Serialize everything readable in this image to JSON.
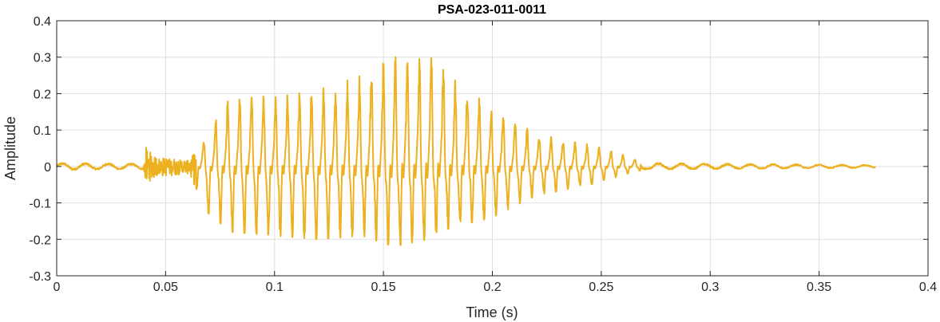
{
  "chart_data": {
    "type": "line",
    "title": "PSA-023-011-0011",
    "xlabel": "Time (s)",
    "ylabel": "Amplitude",
    "xlim": [
      0,
      0.4
    ],
    "ylim": [
      -0.3,
      0.4
    ],
    "xticks": [
      0,
      0.05,
      0.1,
      0.15,
      0.2,
      0.25,
      0.3,
      0.35,
      0.4
    ],
    "xtick_labels": [
      "0",
      "0.05",
      "0.1",
      "0.15",
      "0.2",
      "0.25",
      "0.3",
      "0.35",
      "0.4"
    ],
    "yticks": [
      -0.3,
      -0.2,
      -0.1,
      0,
      0.1,
      0.2,
      0.3,
      0.4
    ],
    "ytick_labels": [
      "-0.3",
      "-0.2",
      "-0.1",
      "0",
      "0.1",
      "0.2",
      "0.3",
      "0.4"
    ],
    "grid": true,
    "line_color": "#EDB120",
    "series": [
      {
        "x_start": 0,
        "x_end": 0.376,
        "envelope": [
          {
            "t": 0.0,
            "pos": 0.01,
            "neg": -0.01
          },
          {
            "t": 0.04,
            "pos": 0.008,
            "neg": -0.008
          },
          {
            "t": 0.041,
            "pos": 0.052,
            "neg": -0.058
          },
          {
            "t": 0.045,
            "pos": 0.025,
            "neg": -0.03
          },
          {
            "t": 0.06,
            "pos": 0.015,
            "neg": -0.02
          },
          {
            "t": 0.064,
            "pos": 0.04,
            "neg": -0.06
          },
          {
            "t": 0.068,
            "pos": 0.08,
            "neg": -0.12
          },
          {
            "t": 0.08,
            "pos": 0.2,
            "neg": -0.18
          },
          {
            "t": 0.1,
            "pos": 0.19,
            "neg": -0.19
          },
          {
            "t": 0.12,
            "pos": 0.21,
            "neg": -0.2
          },
          {
            "t": 0.14,
            "pos": 0.25,
            "neg": -0.19
          },
          {
            "t": 0.155,
            "pos": 0.3,
            "neg": -0.22
          },
          {
            "t": 0.17,
            "pos": 0.31,
            "neg": -0.2
          },
          {
            "t": 0.18,
            "pos": 0.25,
            "neg": -0.17
          },
          {
            "t": 0.2,
            "pos": 0.16,
            "neg": -0.14
          },
          {
            "t": 0.22,
            "pos": 0.09,
            "neg": -0.08
          },
          {
            "t": 0.245,
            "pos": 0.06,
            "neg": -0.05
          },
          {
            "t": 0.262,
            "pos": 0.03,
            "neg": -0.02
          },
          {
            "t": 0.27,
            "pos": 0.01,
            "neg": -0.008
          },
          {
            "t": 0.376,
            "pos": 0.004,
            "neg": -0.004
          }
        ]
      }
    ]
  }
}
